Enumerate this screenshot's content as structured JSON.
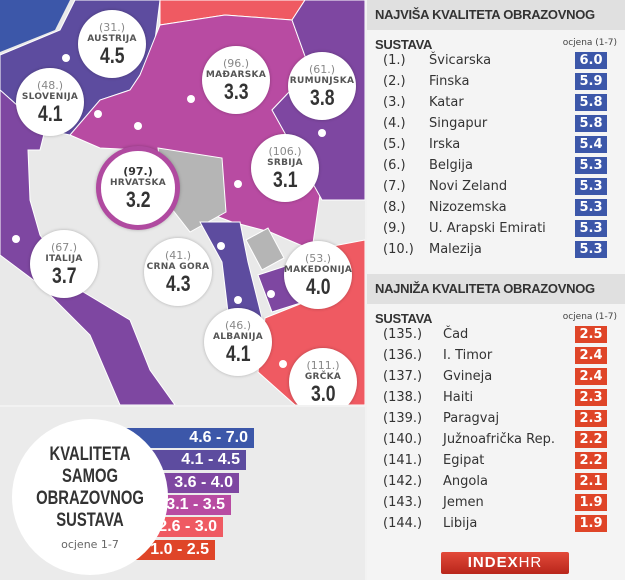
{
  "colors": {
    "4.6-7.0": "#3c57a9",
    "4.1-4.5": "#5d4c9f",
    "3.6-4.0": "#7e47a1",
    "3.1-3.5": "#b84ba2",
    "2.6-3.0": "#ef5a62",
    "1.0-2.5": "#df4528",
    "no_data": "#b5b5b5",
    "sea": "#e9e9e9"
  },
  "map": {
    "countries": [
      {
        "name": "AUSTRIJA",
        "rank": "(31.)",
        "score": "4.5"
      },
      {
        "name": "SLOVENIJA",
        "rank": "(48.)",
        "score": "4.1"
      },
      {
        "name": "MAĐARSKA",
        "rank": "(96.)",
        "score": "3.3"
      },
      {
        "name": "RUMUNJSKA",
        "rank": "(61.)",
        "score": "3.8"
      },
      {
        "name": "SRBIJA",
        "rank": "(106.)",
        "score": "3.1"
      },
      {
        "name": "HRVATSKA",
        "rank": "(97.)",
        "score": "3.2"
      },
      {
        "name": "ITALIJA",
        "rank": "(67.)",
        "score": "3.7"
      },
      {
        "name": "CRNA GORA",
        "rank": "(41.)",
        "score": "4.3"
      },
      {
        "name": "MAKEDONIJA",
        "rank": "(53.)",
        "score": "4.0"
      },
      {
        "name": "ALBANIJA",
        "rank": "(46.)",
        "score": "4.1"
      },
      {
        "name": "GRČKA",
        "rank": "(111.)",
        "score": "3.0"
      }
    ]
  },
  "legend": {
    "title_lines": [
      "KVALITETA",
      "SAMOG",
      "OBRAZOVNOG",
      "SUSTAVA"
    ],
    "subtitle": "ocjene 1-7",
    "ranges": [
      "4.6 - 7.0",
      "4.1 - 4.5",
      "3.6 - 4.0",
      "3.1 - 3.5",
      "2.6 - 3.0",
      "1.0 - 2.5"
    ]
  },
  "top": {
    "title": "NAJVIŠA KVALITETA OBRAZOVNOG SUSTAVA",
    "score_label": "ocjena (1-7)",
    "rows": [
      {
        "rank": "(1.)",
        "country": "Švicarska",
        "score": "6.0"
      },
      {
        "rank": "(2.)",
        "country": "Finska",
        "score": "5.9"
      },
      {
        "rank": "(3.)",
        "country": "Katar",
        "score": "5.8"
      },
      {
        "rank": "(4.)",
        "country": "Singapur",
        "score": "5.8"
      },
      {
        "rank": "(5.)",
        "country": "Irska",
        "score": "5.4"
      },
      {
        "rank": "(6.)",
        "country": "Belgija",
        "score": "5.3"
      },
      {
        "rank": "(7.)",
        "country": "Novi Zeland",
        "score": "5.3"
      },
      {
        "rank": "(8.)",
        "country": "Nizozemska",
        "score": "5.3"
      },
      {
        "rank": "(9.)",
        "country": "U. Arapski Emirati",
        "score": "5.3"
      },
      {
        "rank": "(10.)",
        "country": "Malezija",
        "score": "5.3"
      }
    ]
  },
  "bottom": {
    "title": "NAJNIŽA KVALITETA OBRAZOVNOG SUSTAVA",
    "score_label": "ocjena (1-7)",
    "rows": [
      {
        "rank": "(135.)",
        "country": "Čad",
        "score": "2.5"
      },
      {
        "rank": "(136.)",
        "country": "I. Timor",
        "score": "2.4"
      },
      {
        "rank": "(137.)",
        "country": "Gvineja",
        "score": "2.4"
      },
      {
        "rank": "(138.)",
        "country": "Haiti",
        "score": "2.3"
      },
      {
        "rank": "(139.)",
        "country": "Paragvaj",
        "score": "2.3"
      },
      {
        "rank": "(140.)",
        "country": "Južnoafrička Rep.",
        "score": "2.2"
      },
      {
        "rank": "(141.)",
        "country": "Egipat",
        "score": "2.2"
      },
      {
        "rank": "(142.)",
        "country": "Angola",
        "score": "2.1"
      },
      {
        "rank": "(143.)",
        "country": "Jemen",
        "score": "1.9"
      },
      {
        "rank": "(144.)",
        "country": "Libija",
        "score": "1.9"
      }
    ]
  },
  "logo": "INDEXHR"
}
